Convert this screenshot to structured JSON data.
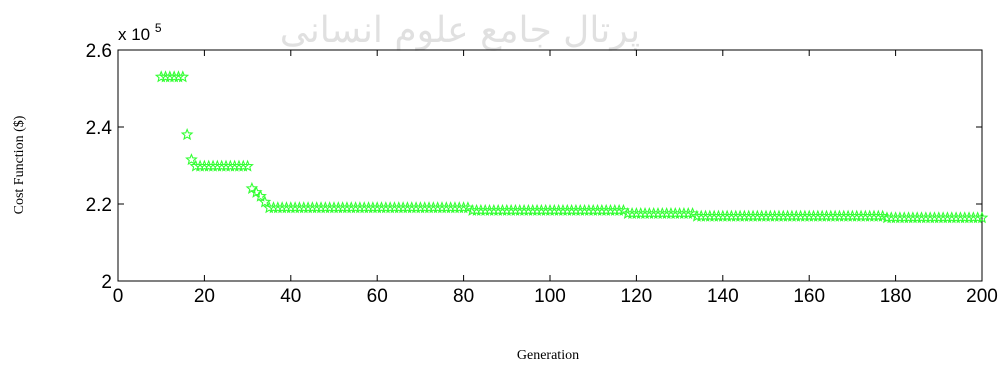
{
  "watermark": "پرتال جامع علوم انسانی",
  "chart_data": {
    "type": "scatter",
    "xlabel": "Generation",
    "ylabel": "Cost Function ($)",
    "y_multiplier": "x 10",
    "y_multiplier_exp": "5",
    "xlim": [
      0,
      200
    ],
    "ylim": [
      200000,
      260000
    ],
    "xticks": [
      0,
      20,
      40,
      60,
      80,
      100,
      120,
      140,
      160,
      180,
      200
    ],
    "yticks": [
      200000,
      220000,
      240000,
      260000
    ],
    "yticklabels": [
      "2",
      "2.2",
      "2.4",
      "2.6"
    ],
    "grid": false,
    "marker": "star",
    "color": "#33ff33",
    "segments": [
      {
        "from": 10,
        "to": 15,
        "value": 253000
      },
      {
        "from": 16,
        "to": 16,
        "value": 238000
      },
      {
        "from": 17,
        "to": 17,
        "value": 231500
      },
      {
        "from": 18,
        "to": 30,
        "value": 229800
      },
      {
        "from": 31,
        "to": 31,
        "value": 224000
      },
      {
        "from": 32,
        "to": 32,
        "value": 223000
      },
      {
        "from": 33,
        "to": 33,
        "value": 222000
      },
      {
        "from": 34,
        "to": 34,
        "value": 220500
      },
      {
        "from": 35,
        "to": 81,
        "value": 219000
      },
      {
        "from": 82,
        "to": 117,
        "value": 218300
      },
      {
        "from": 118,
        "to": 133,
        "value": 217500
      },
      {
        "from": 134,
        "to": 177,
        "value": 216800
      },
      {
        "from": 178,
        "to": 200,
        "value": 216400
      }
    ]
  }
}
